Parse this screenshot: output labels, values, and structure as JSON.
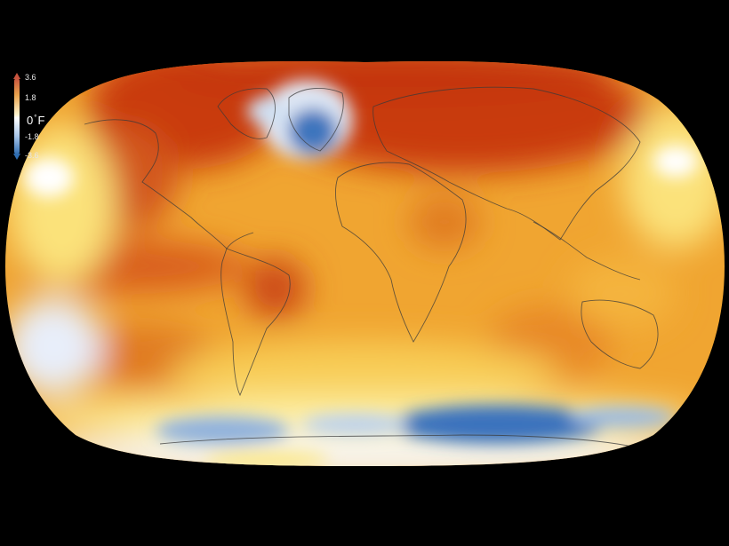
{
  "legend": {
    "ticks": [
      "3.6",
      "1.8",
      "-1.8",
      "-3.6"
    ],
    "zero_value": "0",
    "degree": "°",
    "unit": "F",
    "colors": {
      "hot": "#c8543f",
      "warm": "#e9a24c",
      "neutral": "#fff6cf",
      "cool": "#a9c7ea",
      "cold": "#2f6db1"
    }
  },
  "map": {
    "projection": "robinson",
    "background": "#000000"
  }
}
